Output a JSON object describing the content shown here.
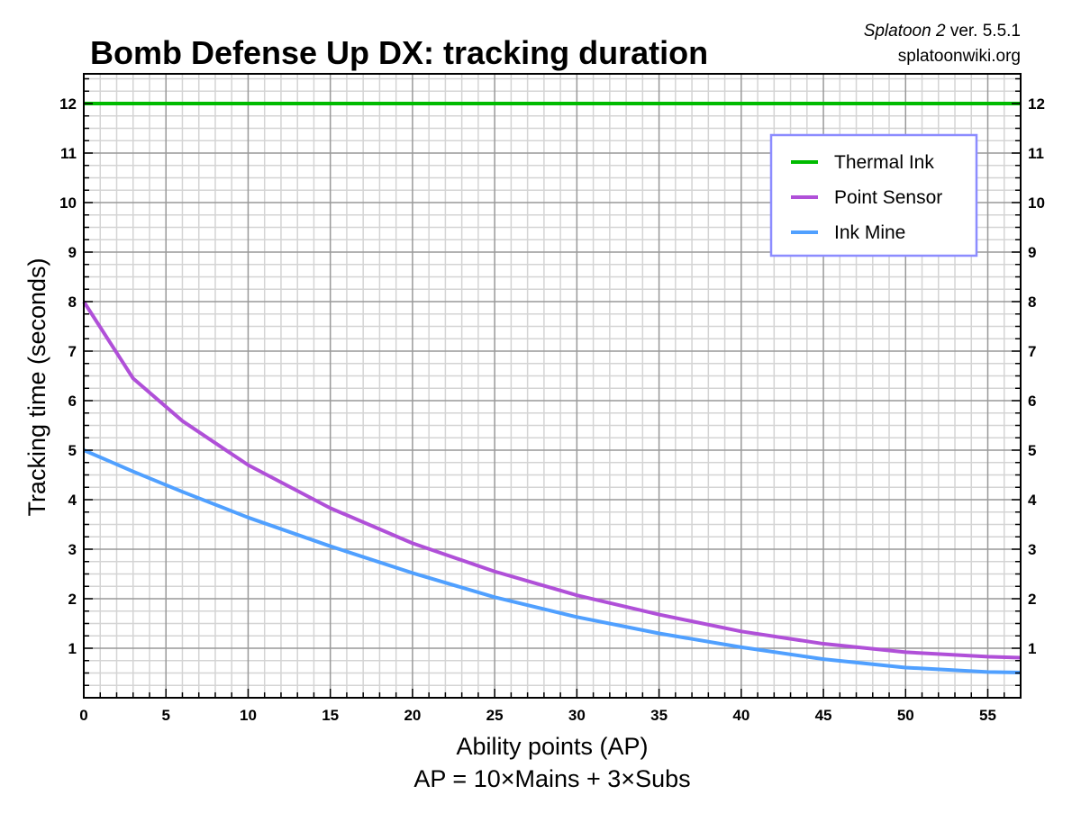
{
  "chart_data": {
    "type": "line",
    "title": "Bomb Defense Up DX: tracking duration",
    "source_game": "Splatoon 2",
    "source_version": "ver. 5.5.1",
    "source_site": "splatoonwiki.org",
    "xlabel": "Ability points (AP)",
    "xlabel2": "AP = 10×Mains + 3×Subs",
    "ylabel": "Tracking time (seconds)",
    "xlim": [
      0,
      57
    ],
    "ylim": [
      0,
      12.6
    ],
    "xticks": [
      0,
      5,
      10,
      15,
      20,
      25,
      30,
      35,
      40,
      45,
      50,
      55
    ],
    "yticks": [
      1,
      2,
      3,
      4,
      5,
      6,
      7,
      8,
      9,
      10,
      11,
      12
    ],
    "grid": true,
    "legend_position": "top-right",
    "legend_border_color": "#8c8cff",
    "x": [
      0,
      3,
      6,
      10,
      15,
      20,
      25,
      30,
      35,
      40,
      45,
      50,
      55,
      57
    ],
    "series": [
      {
        "name": "Thermal Ink",
        "color": "#00bb00",
        "values": [
          12,
          12,
          12,
          12,
          12,
          12,
          12,
          12,
          12,
          12,
          12,
          12,
          12,
          12
        ]
      },
      {
        "name": "Point Sensor",
        "color": "#b050d8",
        "values": [
          8,
          6.45,
          5.59,
          4.7,
          3.83,
          3.12,
          2.55,
          2.07,
          1.68,
          1.34,
          1.09,
          0.92,
          0.83,
          0.81
        ]
      },
      {
        "name": "Ink Mine",
        "color": "#50a0ff",
        "values": [
          5,
          4.57,
          4.16,
          3.64,
          3.06,
          2.52,
          2.03,
          1.63,
          1.3,
          1.02,
          0.78,
          0.61,
          0.52,
          0.51
        ]
      }
    ]
  }
}
